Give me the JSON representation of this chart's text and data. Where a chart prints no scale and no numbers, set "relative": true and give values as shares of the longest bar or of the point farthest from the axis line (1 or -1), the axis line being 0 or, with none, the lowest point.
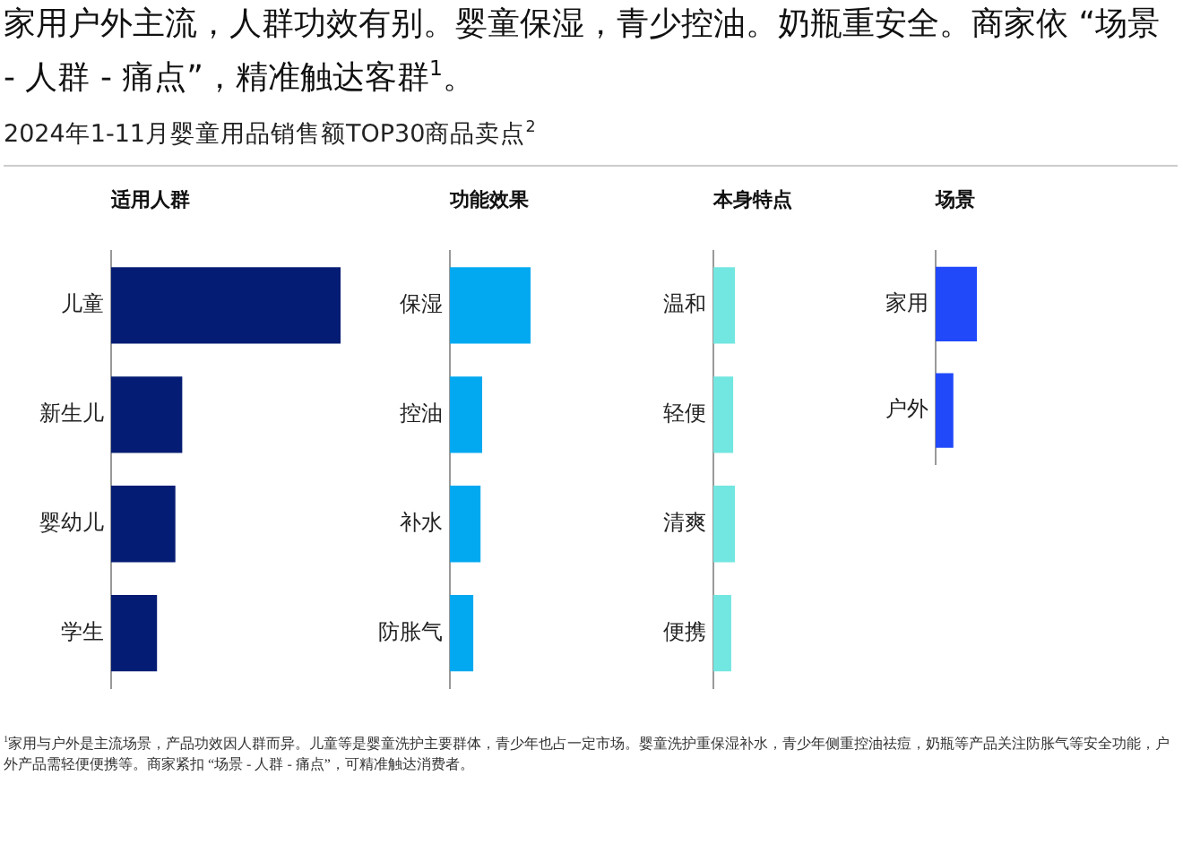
{
  "chart_data": [
    {
      "type": "other",
      "title": "家用户外主流，人群功效有别。婴童保湿，青少控油。奶瓶重安全。商家依 “场景 - 人群 - 痛点”，精准触达客群$^{1}$。",
      "subtitle": "2024年1-11月婴童用品销售额TOP30商品卖点$^{2}$",
      "annotations": [
        "$^{1}$家用与户外是主流场景，产品功效因人群而异。儿童等是婴童洗护主要群体，青少年也占一定市场。婴童洗护重保湿补水，青少年侧重控油祛痘，奶瓶等产品关注防胀气等安全功能，户外产品需轻便便携等。商家紧扣 “场景 - 人群 - 痛点”，可精准触达消费者。"
      ]
    },
    {
      "type": "bar",
      "orientation": "horizontal",
      "relative": true,
      "title": "适用人群",
      "categories": [
        "儿童",
        "新生儿",
        "婴幼儿",
        "学生"
      ],
      "values": [
        1,
        0.31,
        0.28,
        0.2
      ],
      "color": "#041c73"
    },
    {
      "type": "bar",
      "orientation": "horizontal",
      "relative": true,
      "title": "功能效果",
      "categories": [
        "保湿",
        "控油",
        "补水",
        "防胀气"
      ],
      "values": [
        1,
        0.4,
        0.38,
        0.29
      ],
      "color": "#03a9f0"
    },
    {
      "type": "bar",
      "orientation": "horizontal",
      "relative": true,
      "title": "本身特点",
      "categories": [
        "温和",
        "轻便",
        "清爽",
        "便携"
      ],
      "values": [
        1,
        0.92,
        1,
        0.83
      ],
      "color": "#72e6e0"
    },
    {
      "type": "bar",
      "orientation": "horizontal",
      "relative": true,
      "title": "场景",
      "categories": [
        "家用",
        "户外"
      ],
      "values": [
        1,
        0.43
      ],
      "color": "#2149fa"
    }
  ]
}
